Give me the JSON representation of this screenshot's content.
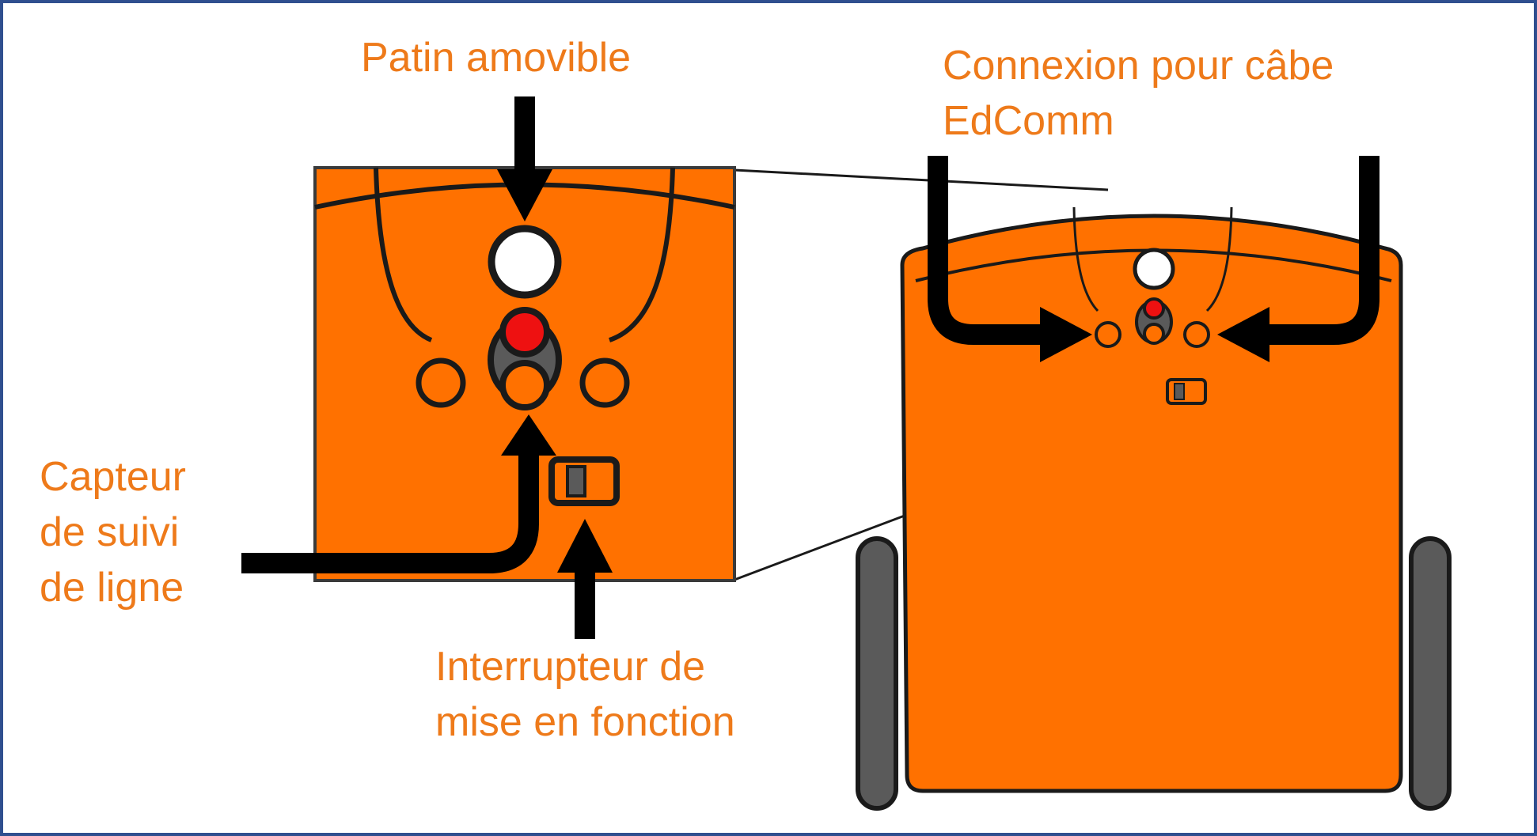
{
  "labels": {
    "removable_pad": "Patin amovible",
    "edcomm_line1": "Connexion pour câbe",
    "edcomm_line2": "EdComm",
    "line_sensor_line1": "Capteur",
    "line_sensor_line2": "de suivi",
    "line_sensor_line3": "de ligne",
    "power_switch_line1": "Interrupteur de",
    "power_switch_line2": "mise en fonction"
  },
  "colors": {
    "orange_body": "#ff7100",
    "label_text": "#ee7a1a",
    "outline": "#1a1a1a",
    "wheel": "#5a5a5a",
    "led_red": "#ee1111",
    "frame_border": "#2f4f8f",
    "pad_white": "#ffffff"
  }
}
